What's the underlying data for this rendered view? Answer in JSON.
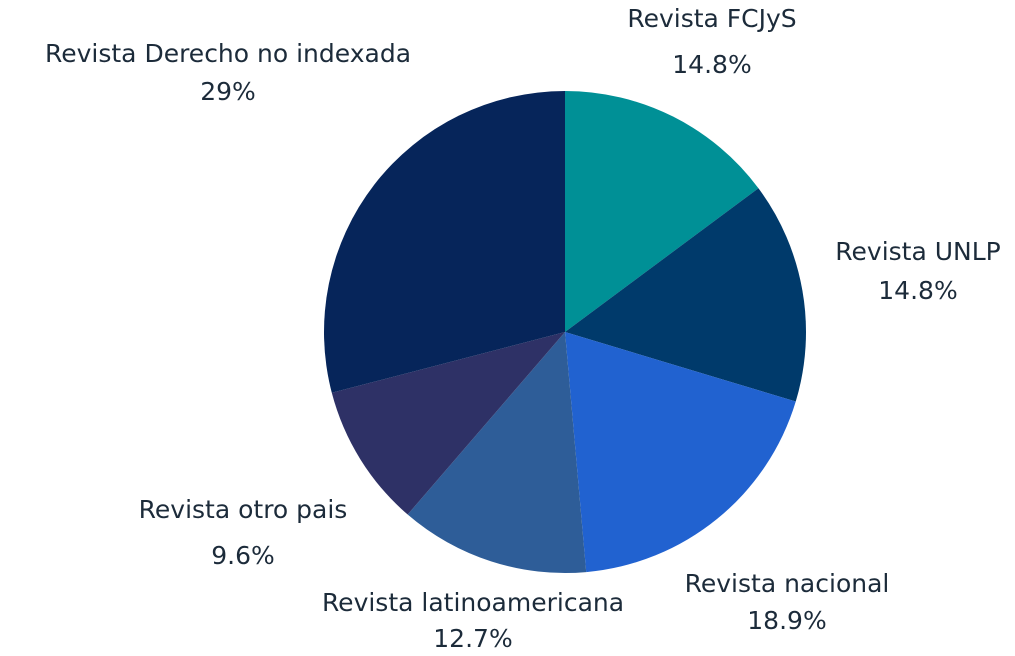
{
  "chart_data": {
    "type": "pie",
    "categories": [
      "Revista FCJyS",
      "Revista UNLP",
      "Revista nacional",
      "Revista latinoamericana",
      "Revista otro pais",
      "Revista Derecho no indexada"
    ],
    "values": [
      14.8,
      14.8,
      18.9,
      12.7,
      9.6,
      29
    ],
    "value_labels": [
      "14.8%",
      "14.8%",
      "18.9%",
      "12.7%",
      "9.6%",
      "29%"
    ],
    "colors": [
      "#009096",
      "#003a6b",
      "#2162d0",
      "#2e5d98",
      "#2e3166",
      "#06255a"
    ]
  }
}
